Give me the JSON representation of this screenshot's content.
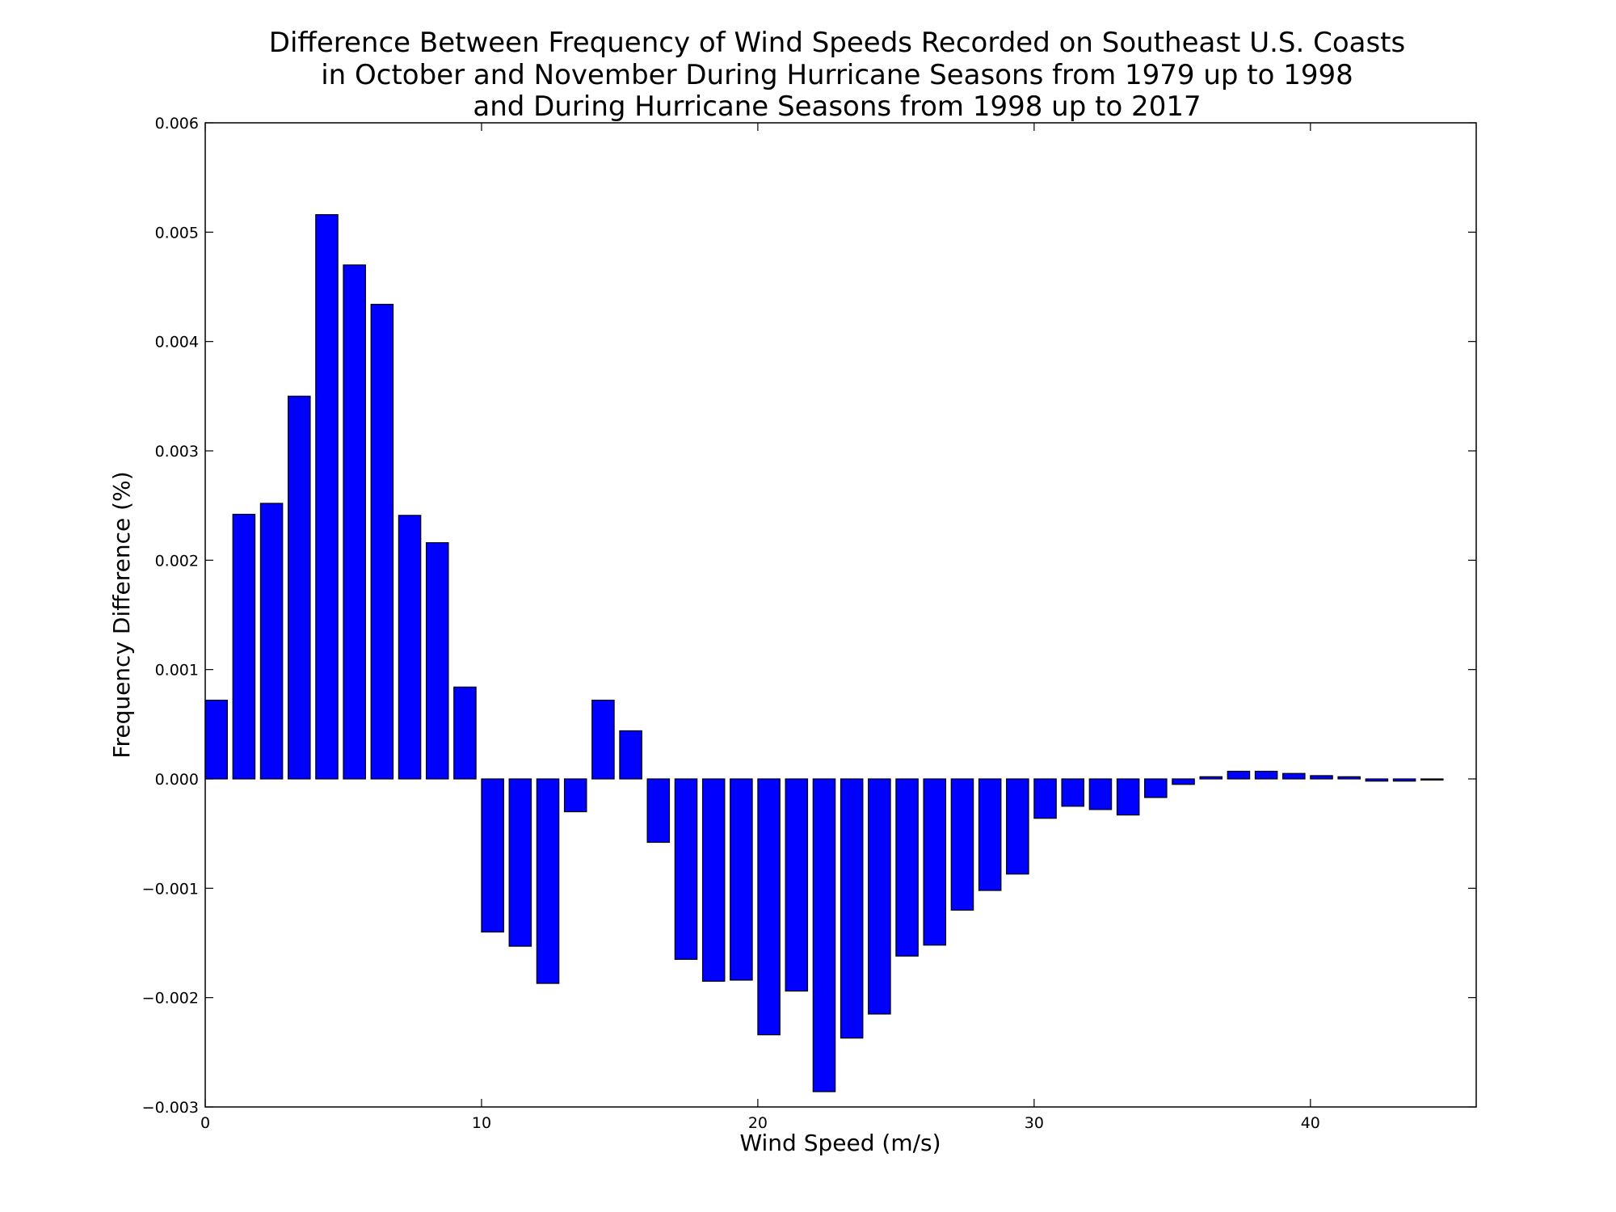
{
  "chart_data": {
    "type": "bar",
    "title": [
      "Difference Between Frequency of Wind Speeds Recorded on Southeast U.S. Coasts",
      "in October and November During Hurricane Seasons from 1979 up to 1998",
      "and During Hurricane Seasons from 1998 up to 2017"
    ],
    "xlabel": "Wind Speed (m/s)",
    "ylabel": "Frequency Difference (%)",
    "xlim": [
      0,
      46
    ],
    "ylim": [
      -0.003,
      0.006
    ],
    "xticks": [
      0,
      10,
      20,
      30,
      40
    ],
    "xtick_labels": [
      "0",
      "10",
      "20",
      "30",
      "40"
    ],
    "yticks": [
      -0.003,
      -0.002,
      -0.001,
      0.0,
      0.001,
      0.002,
      0.003,
      0.004,
      0.005,
      0.006
    ],
    "ytick_labels": [
      "−0.003",
      "−0.002",
      "−0.001",
      "0.000",
      "0.001",
      "0.002",
      "0.003",
      "0.004",
      "0.005",
      "0.006"
    ],
    "bar_width": 0.8,
    "bar_color": "#0000ff",
    "grid": false,
    "x": [
      0,
      1,
      2,
      3,
      4,
      5,
      6,
      7,
      8,
      9,
      10,
      11,
      12,
      13,
      14,
      15,
      16,
      17,
      18,
      19,
      20,
      21,
      22,
      23,
      24,
      25,
      26,
      27,
      28,
      29,
      30,
      31,
      32,
      33,
      34,
      35,
      36,
      37,
      38,
      39,
      40,
      41,
      42,
      43,
      44
    ],
    "values": [
      0.00072,
      0.00242,
      0.00252,
      0.0035,
      0.00516,
      0.0047,
      0.00434,
      0.00241,
      0.00216,
      0.00084,
      -0.0014,
      -0.00153,
      -0.00187,
      -0.0003,
      0.00072,
      0.00044,
      -0.00058,
      -0.00165,
      -0.00185,
      -0.00184,
      -0.00234,
      -0.00194,
      -0.00286,
      -0.00237,
      -0.00215,
      -0.00162,
      -0.00152,
      -0.0012,
      -0.00102,
      -0.00087,
      -0.00036,
      -0.00025,
      -0.00028,
      -0.00033,
      -0.00017,
      -5e-05,
      2e-05,
      7e-05,
      7e-05,
      5e-05,
      3e-05,
      2e-05,
      -2e-05,
      -2e-05,
      -1e-05
    ]
  }
}
